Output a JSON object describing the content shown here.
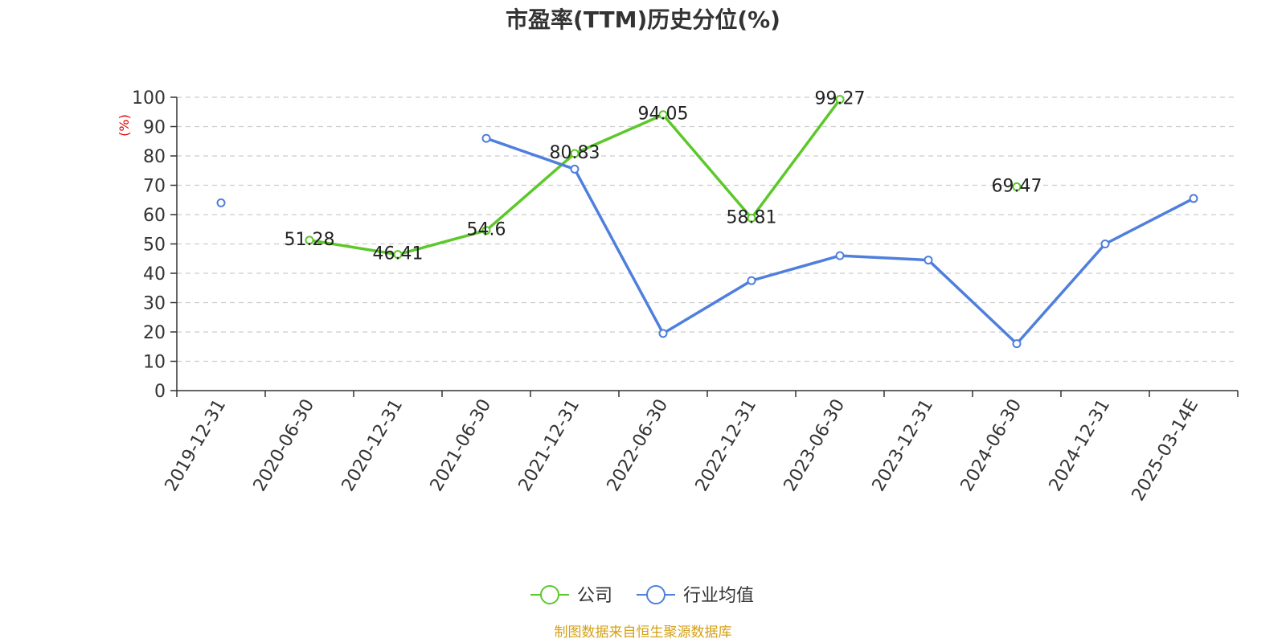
{
  "chart_data": {
    "type": "line",
    "title": "市盈率(TTM)历史分位(%)",
    "ylabel": "(%)",
    "ylim": [
      0,
      100
    ],
    "yticks": [
      0,
      10,
      20,
      30,
      40,
      50,
      60,
      70,
      80,
      90,
      100
    ],
    "grid": true,
    "legend_position": "bottom",
    "categories": [
      "2019-12-31",
      "2020-06-30",
      "2020-12-31",
      "2021-06-30",
      "2021-12-31",
      "2022-06-30",
      "2022-12-31",
      "2023-06-30",
      "2023-12-31",
      "2024-06-30",
      "2024-12-31",
      "2025-03-14E"
    ],
    "series": [
      {
        "name": "公司",
        "color": "#5cc82a",
        "values": [
          null,
          51.28,
          46.41,
          54.6,
          80.83,
          94.05,
          58.81,
          99.27,
          null,
          69.47,
          null,
          null
        ],
        "data_labels": [
          null,
          "51.28",
          "46.41",
          "54.6",
          "80.83",
          "94.05",
          "58.81",
          "99.27",
          null,
          "69.47",
          null,
          null
        ]
      },
      {
        "name": "行业均值",
        "color": "#4f7fdd",
        "values": [
          64,
          null,
          null,
          86,
          75.5,
          19.5,
          37.5,
          46,
          44.5,
          16,
          50,
          65.5
        ]
      }
    ],
    "source": "制图数据来自恒生聚源数据库",
    "colors": {
      "axis_unit": "#e00000",
      "source": "#d4a017",
      "grid": "#cccccc"
    }
  }
}
